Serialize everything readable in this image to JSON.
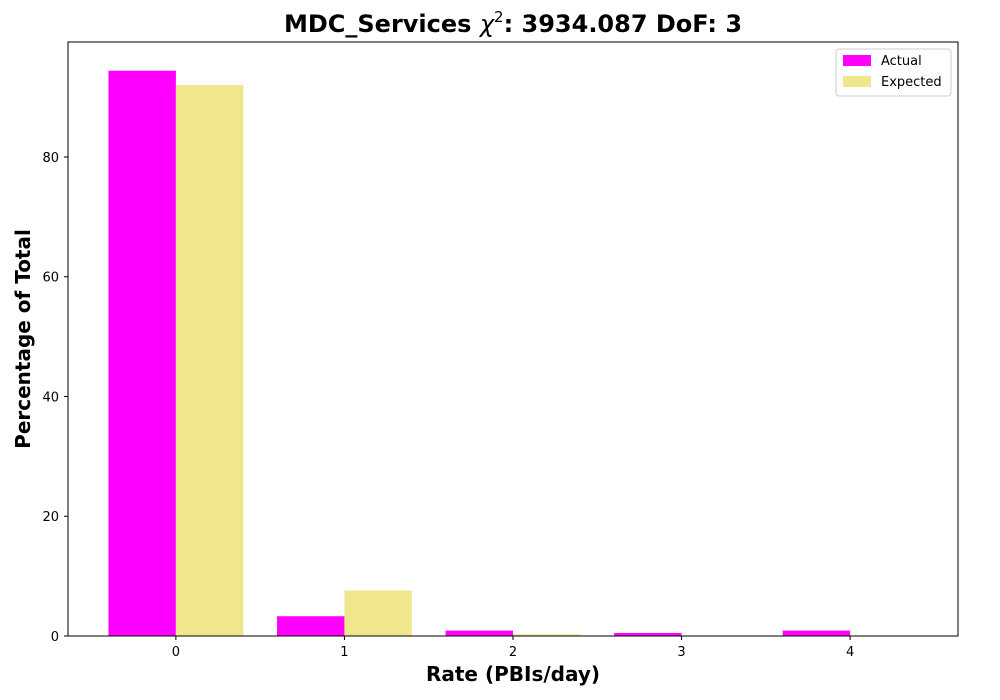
{
  "chart_data": {
    "type": "bar",
    "title_prefix": "MDC_Services ",
    "title_symbol": "χ",
    "title_exponent": "2",
    "title_suffix": ": 3934.087 DoF: 3",
    "xlabel": "Rate (PBIs/day)",
    "ylabel": "Percentage of Total",
    "categories": [
      "0",
      "1",
      "2",
      "3",
      "4"
    ],
    "x": [
      0,
      1,
      2,
      3,
      4
    ],
    "series": [
      {
        "name": "Actual",
        "color": "#ff00ff",
        "values": [
          94.4,
          3.3,
          0.9,
          0.5,
          0.9
        ]
      },
      {
        "name": "Expected",
        "color": "#f0e68c",
        "values": [
          92.0,
          7.6,
          0.3,
          0.02,
          0.001
        ]
      }
    ],
    "xlim": [
      -0.64,
      4.64
    ],
    "ylim": [
      0,
      99.2
    ],
    "yticks": [
      0,
      20,
      40,
      60,
      80
    ],
    "legend_position": "top-right",
    "grid": false
  }
}
